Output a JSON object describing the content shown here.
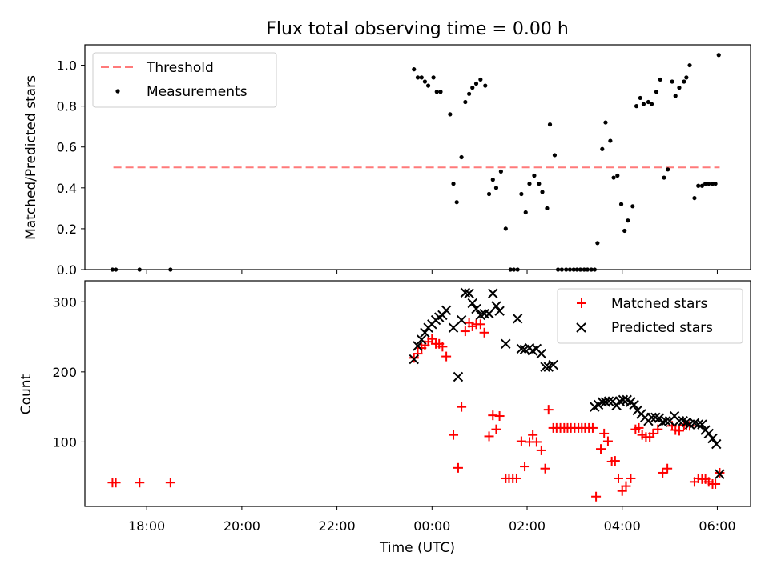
{
  "figure": {
    "title": "Flux total observing time = 0.00 h",
    "xlabel": "Time (UTC)",
    "x_tick_labels": [
      "18:00",
      "20:00",
      "22:00",
      "00:00",
      "02:00",
      "04:00",
      "06:00"
    ]
  },
  "chart_data": [
    {
      "type": "scatter",
      "x_unit": "hours relative to 00:00 UTC (negative = previous evening)",
      "ylabel": "Matched/Predicted stars",
      "xlim": [
        -7.3,
        6.7
      ],
      "ylim": [
        0.0,
        1.1
      ],
      "y_ticks": [
        "0.0",
        "0.2",
        "0.4",
        "0.6",
        "0.8",
        "1.0"
      ],
      "legend_position": "upper-left",
      "threshold": {
        "name": "Threshold",
        "x": [
          -6.7,
          6.05
        ],
        "y": 0.5,
        "color": "#ff7a7a"
      },
      "series": [
        {
          "name": "Measurements",
          "color": "#000000",
          "marker": "dot",
          "points": [
            [
              -6.72,
              0.0
            ],
            [
              -6.65,
              0.0
            ],
            [
              -6.15,
              0.0
            ],
            [
              -5.5,
              0.0
            ],
            [
              -0.38,
              0.98
            ],
            [
              -0.3,
              0.94
            ],
            [
              -0.22,
              0.94
            ],
            [
              -0.15,
              0.92
            ],
            [
              -0.08,
              0.9
            ],
            [
              0.03,
              0.94
            ],
            [
              0.1,
              0.87
            ],
            [
              0.18,
              0.87
            ],
            [
              0.38,
              0.76
            ],
            [
              0.45,
              0.42
            ],
            [
              0.52,
              0.33
            ],
            [
              0.62,
              0.55
            ],
            [
              0.7,
              0.82
            ],
            [
              0.78,
              0.86
            ],
            [
              0.85,
              0.89
            ],
            [
              0.93,
              0.91
            ],
            [
              1.02,
              0.93
            ],
            [
              1.12,
              0.9
            ],
            [
              1.2,
              0.37
            ],
            [
              1.28,
              0.44
            ],
            [
              1.35,
              0.4
            ],
            [
              1.45,
              0.48
            ],
            [
              1.55,
              0.2
            ],
            [
              1.65,
              0.0
            ],
            [
              1.72,
              0.0
            ],
            [
              1.8,
              0.0
            ],
            [
              1.88,
              0.37
            ],
            [
              1.97,
              0.28
            ],
            [
              2.05,
              0.42
            ],
            [
              2.15,
              0.46
            ],
            [
              2.25,
              0.42
            ],
            [
              2.32,
              0.38
            ],
            [
              2.42,
              0.3
            ],
            [
              2.48,
              0.71
            ],
            [
              2.58,
              0.56
            ],
            [
              2.65,
              0.0
            ],
            [
              2.73,
              0.0
            ],
            [
              2.82,
              0.0
            ],
            [
              2.9,
              0.0
            ],
            [
              2.98,
              0.0
            ],
            [
              3.05,
              0.0
            ],
            [
              3.12,
              0.0
            ],
            [
              3.2,
              0.0
            ],
            [
              3.27,
              0.0
            ],
            [
              3.35,
              0.0
            ],
            [
              3.42,
              0.0
            ],
            [
              3.48,
              0.13
            ],
            [
              3.58,
              0.59
            ],
            [
              3.65,
              0.72
            ],
            [
              3.75,
              0.63
            ],
            [
              3.82,
              0.45
            ],
            [
              3.9,
              0.46
            ],
            [
              3.98,
              0.32
            ],
            [
              4.05,
              0.19
            ],
            [
              4.12,
              0.24
            ],
            [
              4.22,
              0.31
            ],
            [
              4.3,
              0.8
            ],
            [
              4.38,
              0.84
            ],
            [
              4.45,
              0.81
            ],
            [
              4.55,
              0.82
            ],
            [
              4.62,
              0.81
            ],
            [
              4.72,
              0.87
            ],
            [
              4.8,
              0.93
            ],
            [
              4.88,
              0.45
            ],
            [
              4.96,
              0.49
            ],
            [
              5.05,
              0.92
            ],
            [
              5.12,
              0.85
            ],
            [
              5.2,
              0.89
            ],
            [
              5.3,
              0.92
            ],
            [
              5.35,
              0.94
            ],
            [
              5.42,
              1.0
            ],
            [
              5.52,
              0.35
            ],
            [
              5.6,
              0.41
            ],
            [
              5.68,
              0.41
            ],
            [
              5.75,
              0.42
            ],
            [
              5.82,
              0.42
            ],
            [
              5.9,
              0.42
            ],
            [
              5.96,
              0.42
            ],
            [
              6.03,
              1.05
            ]
          ]
        }
      ]
    },
    {
      "type": "scatter",
      "x_unit": "hours relative to 00:00 UTC (negative = previous evening)",
      "ylabel": "Count",
      "xlim": [
        -7.3,
        6.7
      ],
      "ylim": [
        8,
        330
      ],
      "y_ticks": [
        "100",
        "200",
        "300"
      ],
      "legend_position": "upper-right",
      "series": [
        {
          "name": "Matched stars",
          "color": "#ff0000",
          "marker": "plus",
          "points": [
            [
              -6.72,
              42
            ],
            [
              -6.65,
              42
            ],
            [
              -6.15,
              42
            ],
            [
              -5.5,
              42
            ],
            [
              -0.38,
              220
            ],
            [
              -0.3,
              226
            ],
            [
              -0.22,
              234
            ],
            [
              -0.15,
              238
            ],
            [
              -0.08,
              243
            ],
            [
              0.0,
              247
            ],
            [
              0.08,
              240
            ],
            [
              0.15,
              240
            ],
            [
              0.22,
              236
            ],
            [
              0.3,
              222
            ],
            [
              0.45,
              110
            ],
            [
              0.55,
              63
            ],
            [
              0.62,
              150
            ],
            [
              0.7,
              258
            ],
            [
              0.78,
              270
            ],
            [
              0.85,
              265
            ],
            [
              0.93,
              268
            ],
            [
              1.02,
              268
            ],
            [
              1.1,
              256
            ],
            [
              1.2,
              108
            ],
            [
              1.28,
              138
            ],
            [
              1.35,
              118
            ],
            [
              1.42,
              137
            ],
            [
              1.55,
              48
            ],
            [
              1.62,
              48
            ],
            [
              1.7,
              48
            ],
            [
              1.78,
              48
            ],
            [
              1.88,
              101
            ],
            [
              1.95,
              65
            ],
            [
              2.05,
              100
            ],
            [
              2.12,
              110
            ],
            [
              2.2,
              100
            ],
            [
              2.3,
              88
            ],
            [
              2.38,
              62
            ],
            [
              2.45,
              146
            ],
            [
              2.55,
              120
            ],
            [
              2.62,
              120
            ],
            [
              2.7,
              120
            ],
            [
              2.78,
              120
            ],
            [
              2.85,
              120
            ],
            [
              2.92,
              120
            ],
            [
              3.0,
              120
            ],
            [
              3.08,
              120
            ],
            [
              3.15,
              120
            ],
            [
              3.22,
              120
            ],
            [
              3.3,
              120
            ],
            [
              3.38,
              120
            ],
            [
              3.45,
              22
            ],
            [
              3.55,
              90
            ],
            [
              3.62,
              112
            ],
            [
              3.7,
              101
            ],
            [
              3.78,
              72
            ],
            [
              3.85,
              73
            ],
            [
              3.92,
              48
            ],
            [
              4.0,
              30
            ],
            [
              4.08,
              37
            ],
            [
              4.18,
              48
            ],
            [
              4.28,
              118
            ],
            [
              4.35,
              120
            ],
            [
              4.42,
              110
            ],
            [
              4.5,
              107
            ],
            [
              4.58,
              107
            ],
            [
              4.65,
              112
            ],
            [
              4.75,
              118
            ],
            [
              4.85,
              56
            ],
            [
              4.95,
              62
            ],
            [
              5.05,
              123
            ],
            [
              5.12,
              117
            ],
            [
              5.2,
              116
            ],
            [
              5.3,
              124
            ],
            [
              5.35,
              124
            ],
            [
              5.42,
              123
            ],
            [
              5.52,
              43
            ],
            [
              5.6,
              48
            ],
            [
              5.68,
              47
            ],
            [
              5.75,
              47
            ],
            [
              5.82,
              43
            ],
            [
              5.9,
              40
            ],
            [
              5.96,
              40
            ],
            [
              6.05,
              56
            ]
          ]
        },
        {
          "name": "Predicted stars",
          "color": "#000000",
          "marker": "x",
          "points": [
            [
              -0.38,
              218
            ],
            [
              -0.3,
              237
            ],
            [
              -0.22,
              246
            ],
            [
              -0.15,
              256
            ],
            [
              -0.08,
              263
            ],
            [
              0.0,
              268
            ],
            [
              0.08,
              274
            ],
            [
              0.15,
              278
            ],
            [
              0.22,
              281
            ],
            [
              0.3,
              288
            ],
            [
              0.45,
              263
            ],
            [
              0.55,
              193
            ],
            [
              0.62,
              274
            ],
            [
              0.7,
              313
            ],
            [
              0.78,
              312
            ],
            [
              0.85,
              298
            ],
            [
              0.93,
              290
            ],
            [
              1.02,
              281
            ],
            [
              1.1,
              283
            ],
            [
              1.2,
              283
            ],
            [
              1.28,
              312
            ],
            [
              1.35,
              294
            ],
            [
              1.42,
              287
            ],
            [
              1.55,
              240
            ],
            [
              1.8,
              276
            ],
            [
              1.88,
              233
            ],
            [
              1.95,
              232
            ],
            [
              2.05,
              234
            ],
            [
              2.12,
              230
            ],
            [
              2.2,
              233
            ],
            [
              2.3,
              226
            ],
            [
              2.38,
              207
            ],
            [
              2.45,
              207
            ],
            [
              2.55,
              210
            ],
            [
              3.42,
              150
            ],
            [
              3.5,
              153
            ],
            [
              3.58,
              157
            ],
            [
              3.65,
              157
            ],
            [
              3.72,
              158
            ],
            [
              3.8,
              158
            ],
            [
              3.88,
              152
            ],
            [
              3.95,
              158
            ],
            [
              4.02,
              160
            ],
            [
              4.1,
              160
            ],
            [
              4.18,
              157
            ],
            [
              4.25,
              153
            ],
            [
              4.32,
              145
            ],
            [
              4.4,
              140
            ],
            [
              4.48,
              135
            ],
            [
              4.55,
              130
            ],
            [
              4.62,
              135
            ],
            [
              4.7,
              135
            ],
            [
              4.78,
              134
            ],
            [
              4.85,
              128
            ],
            [
              4.92,
              130
            ],
            [
              5.0,
              130
            ],
            [
              5.1,
              137
            ],
            [
              5.2,
              130
            ],
            [
              5.28,
              130
            ],
            [
              5.35,
              128
            ],
            [
              5.42,
              125
            ],
            [
              5.52,
              127
            ],
            [
              5.6,
              125
            ],
            [
              5.68,
              125
            ],
            [
              5.75,
              117
            ],
            [
              5.82,
              112
            ],
            [
              5.9,
              105
            ],
            [
              5.98,
              97
            ],
            [
              6.05,
              54
            ]
          ]
        }
      ]
    }
  ]
}
